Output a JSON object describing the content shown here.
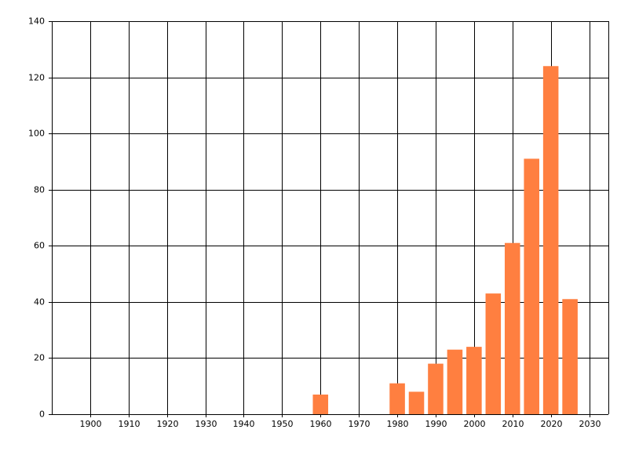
{
  "chart_data": {
    "type": "bar",
    "x": [
      1960,
      1980,
      1985,
      1990,
      1995,
      2000,
      2005,
      2010,
      2015,
      2020,
      2025
    ],
    "values": [
      7,
      11,
      8,
      18,
      23,
      24,
      43,
      61,
      91,
      124,
      41
    ],
    "color": "#ff7f40",
    "xlim": [
      1890,
      2035
    ],
    "ylim": [
      0,
      140
    ],
    "xticks": [
      1900,
      1910,
      1920,
      1930,
      1940,
      1950,
      1960,
      1970,
      1980,
      1990,
      2000,
      2010,
      2020,
      2030
    ],
    "yticks": [
      0,
      20,
      40,
      60,
      80,
      100,
      120,
      140
    ],
    "grid": true
  }
}
